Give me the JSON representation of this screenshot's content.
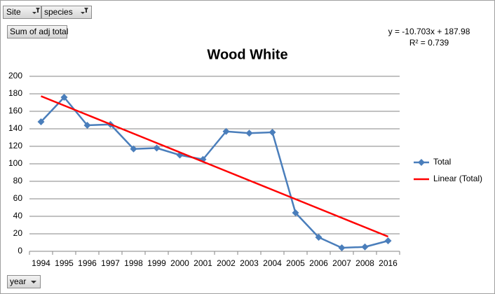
{
  "pivot": {
    "filters": [
      "Site",
      "species"
    ],
    "value_field": "Sum of adj total",
    "axis_field": "year"
  },
  "chart_data": {
    "type": "line",
    "title": "Wood White",
    "categories": [
      "1994",
      "1995",
      "1996",
      "1997",
      "1998",
      "1999",
      "2000",
      "2001",
      "2002",
      "2003",
      "2004",
      "2005",
      "2006",
      "2007",
      "2008",
      "2016"
    ],
    "series": [
      {
        "name": "Total",
        "color": "#4a7ebb",
        "marker": "diamond",
        "values": [
          148,
          176,
          144,
          145,
          117,
          118,
          110,
          105,
          137,
          135,
          136,
          44,
          16,
          4,
          5,
          12
        ]
      },
      {
        "name": "Linear (Total)",
        "color": "#ff0000",
        "values": [
          177.3,
          166.6,
          155.9,
          145.2,
          134.5,
          123.8,
          113.1,
          102.4,
          91.7,
          81.0,
          70.3,
          59.6,
          48.9,
          38.2,
          27.5,
          16.8
        ]
      }
    ],
    "annotations": [
      "y = -10.703x + 187.98",
      "R² = 0.739"
    ],
    "ylim": [
      0,
      200
    ],
    "yticks": [
      0,
      20,
      40,
      60,
      80,
      100,
      120,
      140,
      160,
      180,
      200
    ],
    "grid": true,
    "legend": "right"
  }
}
